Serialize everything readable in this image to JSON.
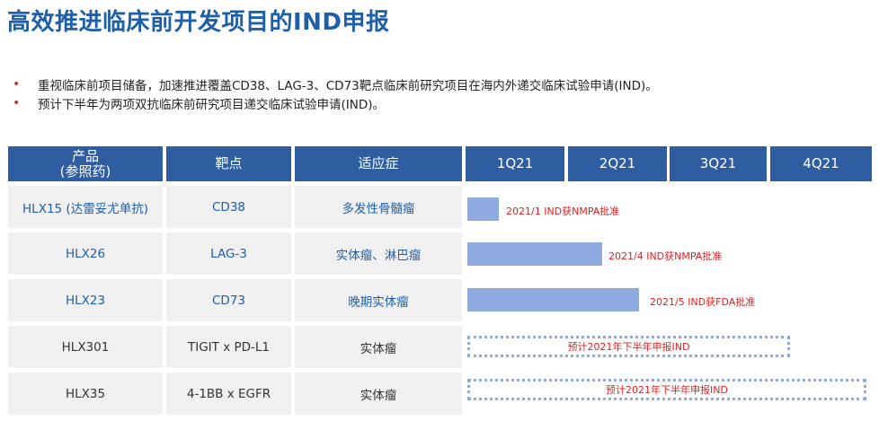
{
  "title": "高效推进临床前开发项目的IND申报",
  "bullets": [
    "重视临床前项目储备，加速推进覆盖CD38、LAG-3、CD73靶点临床前研究项目在海内外递交临床试验申请(IND)。",
    "预计下半年为两项双抗临床前研究项目递交临床试验申请(IND)。"
  ],
  "bullet_marker": "•",
  "header": {
    "product_line1": "产品",
    "product_line2": "(参照药)",
    "target": "靶点",
    "indication": "适应症",
    "quarters": [
      "1Q21",
      "2Q21",
      "3Q21",
      "4Q21"
    ]
  },
  "rows": [
    {
      "product": "HLX15 (达雷妥尤单抗)",
      "target": "CD38",
      "indication": "多发性骨髓瘤",
      "milestone": "2021/1 IND获NMPA批准",
      "highlight": true,
      "status": "approved"
    },
    {
      "product": "HLX26",
      "target": "LAG-3",
      "indication": "实体瘤、淋巴瘤",
      "milestone": "2021/4 IND获NMPA批准",
      "highlight": true,
      "status": "approved"
    },
    {
      "product": "HLX23",
      "target": "CD73",
      "indication": "晚期实体瘤",
      "milestone": "2021/5 IND获FDA批准",
      "highlight": true,
      "status": "approved"
    },
    {
      "product": "HLX301",
      "target": "TIGIT x PD-L1",
      "indication": "实体瘤",
      "milestone": "预计2021年下半年申报IND",
      "highlight": false,
      "status": "planned"
    },
    {
      "product": "HLX35",
      "target": "4-1BB x EGFR",
      "indication": "实体瘤",
      "milestone": "预计2021年下半年申报IND",
      "highlight": false,
      "status": "planned"
    }
  ],
  "colors": {
    "title": "#1f5fa8",
    "header_bg": "#2e5ea0",
    "bar": "#8eaadf",
    "milestone_text": "#e02020",
    "bullet": "#c0392b"
  }
}
